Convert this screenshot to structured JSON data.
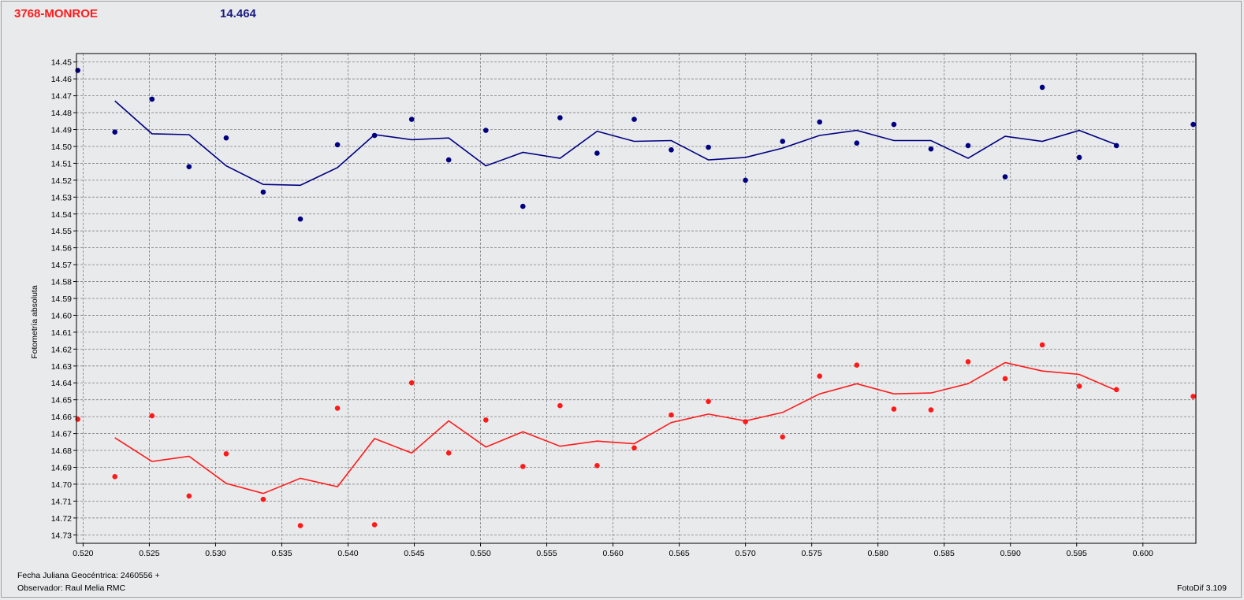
{
  "header": {
    "object_name": "3768-MONROE",
    "magnitude": "14.464"
  },
  "footer": {
    "julian_date": "Fecha Juliana Geocéntrica: 2460556 +",
    "observer": "Observador: Raul Melia RMC",
    "version": "FotoDif 3.109"
  },
  "colors": {
    "blue": "#000080",
    "red": "#ff1a1a",
    "grid": "#808080",
    "plot_bg": "#e9eaec"
  },
  "chart_data": {
    "type": "scatter",
    "title": "",
    "xlabel": "",
    "ylabel": "Fotometría absoluta",
    "xlim": [
      0.5195,
      0.604
    ],
    "ylim": [
      14.445,
      14.735
    ],
    "y_inverted": true,
    "grid": true,
    "x_ticks": [
      0.52,
      0.525,
      0.53,
      0.535,
      0.54,
      0.545,
      0.55,
      0.555,
      0.56,
      0.565,
      0.57,
      0.575,
      0.58,
      0.585,
      0.59,
      0.595,
      0.6
    ],
    "x_tick_labels": [
      "0.520",
      "0.525",
      "0.530",
      "0.535",
      "0.540",
      "0.545",
      "0.550",
      "0.555",
      "0.560",
      "0.565",
      "0.570",
      "0.575",
      "0.580",
      "0.585",
      "0.590",
      "0.595",
      "0.600"
    ],
    "y_ticks": [
      14.45,
      14.46,
      14.47,
      14.48,
      14.49,
      14.5,
      14.51,
      14.52,
      14.53,
      14.54,
      14.55,
      14.56,
      14.57,
      14.58,
      14.59,
      14.6,
      14.61,
      14.62,
      14.63,
      14.64,
      14.65,
      14.66,
      14.67,
      14.68,
      14.69,
      14.7,
      14.71,
      14.72,
      14.73
    ],
    "y_tick_labels": [
      "14.45",
      "14.46",
      "14.47",
      "14.48",
      "14.49",
      "14.50",
      "14.51",
      "14.52",
      "14.53",
      "14.54",
      "14.55",
      "14.56",
      "14.57",
      "14.58",
      "14.59",
      "14.60",
      "14.61",
      "14.62",
      "14.63",
      "14.64",
      "14.65",
      "14.66",
      "14.67",
      "14.68",
      "14.69",
      "14.70",
      "14.71",
      "14.72",
      "14.73"
    ],
    "series": [
      {
        "color": "#000080",
        "points": [
          [
            0.5196,
            14.455
          ],
          [
            0.5224,
            14.4915
          ],
          [
            0.5252,
            14.472
          ],
          [
            0.528,
            14.512
          ],
          [
            0.5308,
            14.495
          ],
          [
            0.5336,
            14.527
          ],
          [
            0.5364,
            14.543
          ],
          [
            0.5392,
            14.499
          ],
          [
            0.542,
            14.4935
          ],
          [
            0.5448,
            14.484
          ],
          [
            0.5476,
            14.508
          ],
          [
            0.5504,
            14.4905
          ],
          [
            0.5532,
            14.5355
          ],
          [
            0.556,
            14.483
          ],
          [
            0.5588,
            14.504
          ],
          [
            0.5616,
            14.484
          ],
          [
            0.5644,
            14.502
          ],
          [
            0.5672,
            14.5005
          ],
          [
            0.57,
            14.52
          ],
          [
            0.5728,
            14.497
          ],
          [
            0.5756,
            14.4855
          ],
          [
            0.5784,
            14.498
          ],
          [
            0.5812,
            14.487
          ],
          [
            0.584,
            14.5015
          ],
          [
            0.5868,
            14.4995
          ],
          [
            0.5896,
            14.518
          ],
          [
            0.5924,
            14.465
          ],
          [
            0.5952,
            14.5065
          ],
          [
            0.598,
            14.4995
          ],
          [
            0.6038,
            14.487
          ]
        ],
        "line": [
          [
            0.5224,
            14.473
          ],
          [
            0.5252,
            14.4925
          ],
          [
            0.528,
            14.493
          ],
          [
            0.5308,
            14.5115
          ],
          [
            0.5336,
            14.5225
          ],
          [
            0.5364,
            14.523
          ],
          [
            0.5392,
            14.5125
          ],
          [
            0.542,
            14.493
          ],
          [
            0.5448,
            14.496
          ],
          [
            0.5476,
            14.495
          ],
          [
            0.5504,
            14.5115
          ],
          [
            0.5532,
            14.5035
          ],
          [
            0.556,
            14.507
          ],
          [
            0.5588,
            14.491
          ],
          [
            0.5616,
            14.497
          ],
          [
            0.5644,
            14.4965
          ],
          [
            0.5672,
            14.508
          ],
          [
            0.57,
            14.5065
          ],
          [
            0.5728,
            14.501
          ],
          [
            0.5756,
            14.4935
          ],
          [
            0.5784,
            14.4905
          ],
          [
            0.5812,
            14.4965
          ],
          [
            0.584,
            14.4965
          ],
          [
            0.5868,
            14.507
          ],
          [
            0.5896,
            14.494
          ],
          [
            0.5924,
            14.497
          ],
          [
            0.5952,
            14.4905
          ],
          [
            0.598,
            14.499
          ]
        ]
      },
      {
        "color": "#ff1a1a",
        "points": [
          [
            0.5196,
            14.6615
          ],
          [
            0.5224,
            14.6955
          ],
          [
            0.5252,
            14.6595
          ],
          [
            0.528,
            14.707
          ],
          [
            0.5308,
            14.682
          ],
          [
            0.5336,
            14.709
          ],
          [
            0.5364,
            14.7245
          ],
          [
            0.5392,
            14.655
          ],
          [
            0.542,
            14.724
          ],
          [
            0.5448,
            14.64
          ],
          [
            0.5476,
            14.6815
          ],
          [
            0.5504,
            14.662
          ],
          [
            0.5532,
            14.6895
          ],
          [
            0.556,
            14.6535
          ],
          [
            0.5588,
            14.689
          ],
          [
            0.5616,
            14.6785
          ],
          [
            0.5644,
            14.659
          ],
          [
            0.5672,
            14.651
          ],
          [
            0.57,
            14.663
          ],
          [
            0.5728,
            14.672
          ],
          [
            0.5756,
            14.636
          ],
          [
            0.5784,
            14.6295
          ],
          [
            0.5812,
            14.6555
          ],
          [
            0.584,
            14.656
          ],
          [
            0.5868,
            14.6275
          ],
          [
            0.5896,
            14.6375
          ],
          [
            0.5924,
            14.6175
          ],
          [
            0.5952,
            14.642
          ],
          [
            0.598,
            14.644
          ],
          [
            0.6038,
            14.648
          ]
        ],
        "line": [
          [
            0.5224,
            14.6725
          ],
          [
            0.5252,
            14.6865
          ],
          [
            0.528,
            14.6835
          ],
          [
            0.5308,
            14.6995
          ],
          [
            0.5336,
            14.7055
          ],
          [
            0.5364,
            14.6965
          ],
          [
            0.5392,
            14.7015
          ],
          [
            0.542,
            14.673
          ],
          [
            0.5448,
            14.6815
          ],
          [
            0.5476,
            14.6625
          ],
          [
            0.5504,
            14.678
          ],
          [
            0.5532,
            14.669
          ],
          [
            0.556,
            14.6775
          ],
          [
            0.5588,
            14.6745
          ],
          [
            0.5616,
            14.676
          ],
          [
            0.5644,
            14.6635
          ],
          [
            0.5672,
            14.6585
          ],
          [
            0.57,
            14.6625
          ],
          [
            0.5728,
            14.6575
          ],
          [
            0.5756,
            14.6465
          ],
          [
            0.5784,
            14.6405
          ],
          [
            0.5812,
            14.6465
          ],
          [
            0.584,
            14.646
          ],
          [
            0.5868,
            14.6405
          ],
          [
            0.5896,
            14.628
          ],
          [
            0.5924,
            14.633
          ],
          [
            0.5952,
            14.635
          ],
          [
            0.598,
            14.6445
          ]
        ]
      }
    ]
  }
}
